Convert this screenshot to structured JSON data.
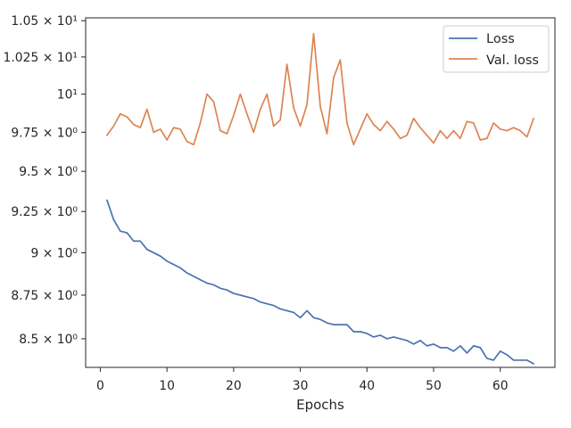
{
  "chart_data": {
    "type": "line",
    "xlabel": "Epochs",
    "ylabel": "",
    "xlim": [
      -2.2,
      68.2
    ],
    "ylim": [
      8.34,
      10.52
    ],
    "log_scale_y": true,
    "grid": false,
    "legend_position": "top-right",
    "x_ticks": [
      0,
      10,
      20,
      30,
      40,
      50,
      60
    ],
    "y_ticks": [
      {
        "value": 8.5,
        "label": "8.5 × 10⁰"
      },
      {
        "value": 8.75,
        "label": "8.75 × 10⁰"
      },
      {
        "value": 9.0,
        "label": "9 × 10⁰"
      },
      {
        "value": 9.25,
        "label": "9.25 × 10⁰"
      },
      {
        "value": 9.5,
        "label": "9.5 × 10⁰"
      },
      {
        "value": 9.75,
        "label": "9.75 × 10⁰"
      },
      {
        "value": 10.0,
        "label": "10¹"
      },
      {
        "value": 10.25,
        "label": "1.025 × 10¹"
      },
      {
        "value": 10.5,
        "label": "1.05 × 10¹"
      }
    ],
    "series": [
      {
        "name": "Loss",
        "color": "#4c72b0",
        "x": [
          1,
          2,
          3,
          4,
          5,
          6,
          7,
          8,
          9,
          10,
          11,
          12,
          13,
          14,
          15,
          16,
          17,
          18,
          19,
          20,
          21,
          22,
          23,
          24,
          25,
          26,
          27,
          28,
          29,
          30,
          31,
          32,
          33,
          34,
          35,
          36,
          37,
          38,
          39,
          40,
          41,
          42,
          43,
          44,
          45,
          46,
          47,
          48,
          49,
          50,
          51,
          52,
          53,
          54,
          55,
          56,
          57,
          58,
          59,
          60,
          61,
          62,
          63,
          64,
          65
        ],
        "values": [
          9.32,
          9.2,
          9.13,
          9.12,
          9.07,
          9.07,
          9.02,
          9.0,
          8.98,
          8.95,
          8.93,
          8.91,
          8.88,
          8.86,
          8.84,
          8.82,
          8.81,
          8.79,
          8.78,
          8.76,
          8.75,
          8.74,
          8.73,
          8.71,
          8.7,
          8.69,
          8.67,
          8.66,
          8.65,
          8.62,
          8.66,
          8.62,
          8.61,
          8.59,
          8.58,
          8.58,
          8.58,
          8.54,
          8.54,
          8.53,
          8.51,
          8.52,
          8.5,
          8.51,
          8.5,
          8.49,
          8.47,
          8.49,
          8.46,
          8.47,
          8.45,
          8.45,
          8.43,
          8.46,
          8.42,
          8.46,
          8.45,
          8.39,
          8.38,
          8.43,
          8.41,
          8.38,
          8.38,
          8.38,
          8.36
        ]
      },
      {
        "name": "Val. loss",
        "color": "#dd8452",
        "x": [
          1,
          2,
          3,
          4,
          5,
          6,
          7,
          8,
          9,
          10,
          11,
          12,
          13,
          14,
          15,
          16,
          17,
          18,
          19,
          20,
          21,
          22,
          23,
          24,
          25,
          26,
          27,
          28,
          29,
          30,
          31,
          32,
          33,
          34,
          35,
          36,
          37,
          38,
          39,
          40,
          41,
          42,
          43,
          44,
          45,
          46,
          47,
          48,
          49,
          50,
          51,
          52,
          53,
          54,
          55,
          56,
          57,
          58,
          59,
          60,
          61,
          62,
          63,
          64,
          65
        ],
        "values": [
          9.73,
          9.79,
          9.87,
          9.85,
          9.8,
          9.78,
          9.9,
          9.75,
          9.77,
          9.7,
          9.78,
          9.77,
          9.69,
          9.67,
          9.81,
          10.0,
          9.95,
          9.76,
          9.74,
          9.86,
          10.0,
          9.87,
          9.75,
          9.9,
          10.0,
          9.79,
          9.83,
          10.2,
          9.91,
          9.79,
          9.93,
          10.41,
          9.92,
          9.74,
          10.11,
          10.23,
          9.81,
          9.67,
          9.77,
          9.87,
          9.8,
          9.76,
          9.82,
          9.77,
          9.71,
          9.73,
          9.84,
          9.78,
          9.73,
          9.68,
          9.76,
          9.71,
          9.76,
          9.71,
          9.82,
          9.81,
          9.7,
          9.71,
          9.81,
          9.77,
          9.76,
          9.78,
          9.76,
          9.72,
          9.84
        ]
      }
    ]
  }
}
